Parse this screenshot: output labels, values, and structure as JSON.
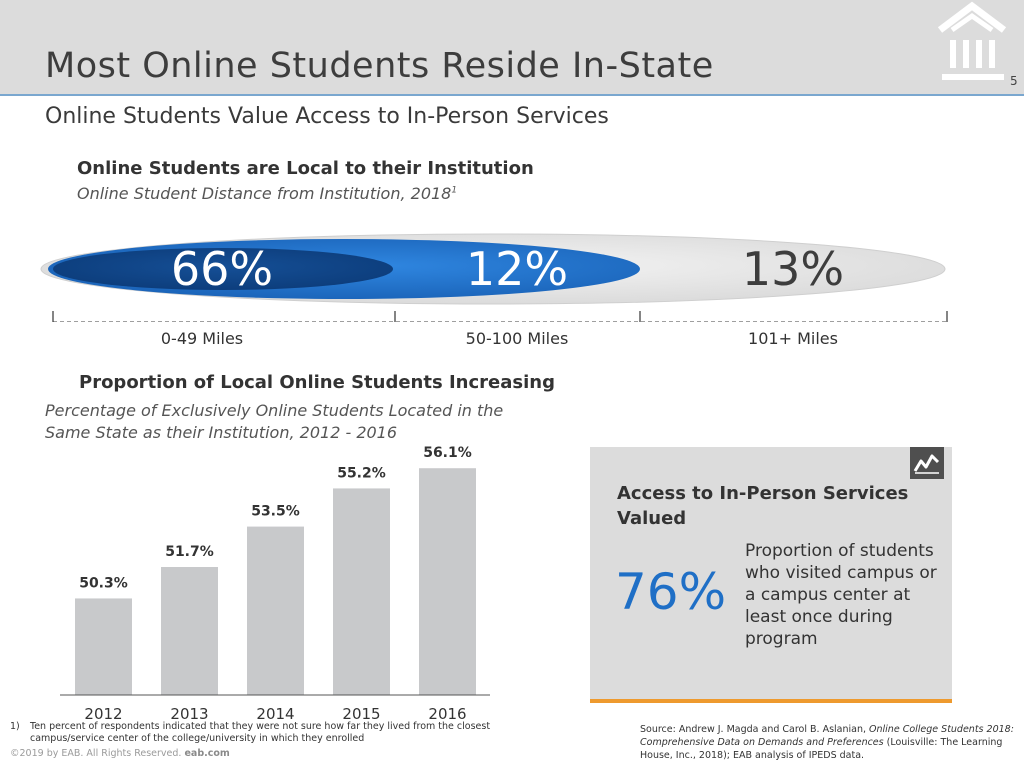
{
  "header": {
    "title": "Most Online Students Reside In-State",
    "page_number": "5"
  },
  "subtitle": "Online Students Value Access to In-Person Services",
  "section1": {
    "title": "Online Students are Local to their Institution",
    "subtitle": "Online Student Distance from Institution, 2018",
    "footnote_ref": "1",
    "segments": [
      {
        "label": "0-49 Miles",
        "value": "66%",
        "color": "#0f4e9a"
      },
      {
        "label": "50-100 Miles",
        "value": "12%",
        "color": "#1f6fc6"
      },
      {
        "label": "101+ Miles",
        "value": "13%",
        "color": "#e6e6e6"
      }
    ]
  },
  "section2": {
    "title": "Proportion of Local Online Students Increasing",
    "subtitle": "Percentage of Exclusively Online Students Located in the Same State as their Institution, 2012 - 2016"
  },
  "chart_data": {
    "type": "bar",
    "categories": [
      "2012",
      "2013",
      "2014",
      "2015",
      "2016"
    ],
    "values": [
      50.3,
      51.7,
      53.5,
      55.2,
      56.1
    ],
    "data_labels": [
      "50.3%",
      "51.7%",
      "53.5%",
      "55.2%",
      "56.1%"
    ],
    "ylim": [
      46,
      57
    ],
    "bar_color": "#c8c9cb",
    "grid": false,
    "title": "",
    "xlabel": "",
    "ylabel": ""
  },
  "callout": {
    "title": "Access to In-Person Services Valued",
    "value": "76%",
    "description": "Proportion of students who visited campus or a campus center at least once during program",
    "icon": "trend-chart-icon"
  },
  "footnote": {
    "number": "1)",
    "text": "Ten percent of respondents indicated that they were not sure how far they lived from the closest campus/service center of the college/university in which they enrolled"
  },
  "copyright": {
    "text": "©2019 by EAB. All Rights Reserved.",
    "site": "eab.com"
  },
  "source": {
    "prefix": "Source: Andrew J. Magda and Carol B. Aslanian, ",
    "title": "Online College Students 2018: Comprehensive Data on Demands and Preferences",
    "suffix": " (Louisville: The Learning House, Inc., 2018); EAB analysis of IPEDS data."
  }
}
